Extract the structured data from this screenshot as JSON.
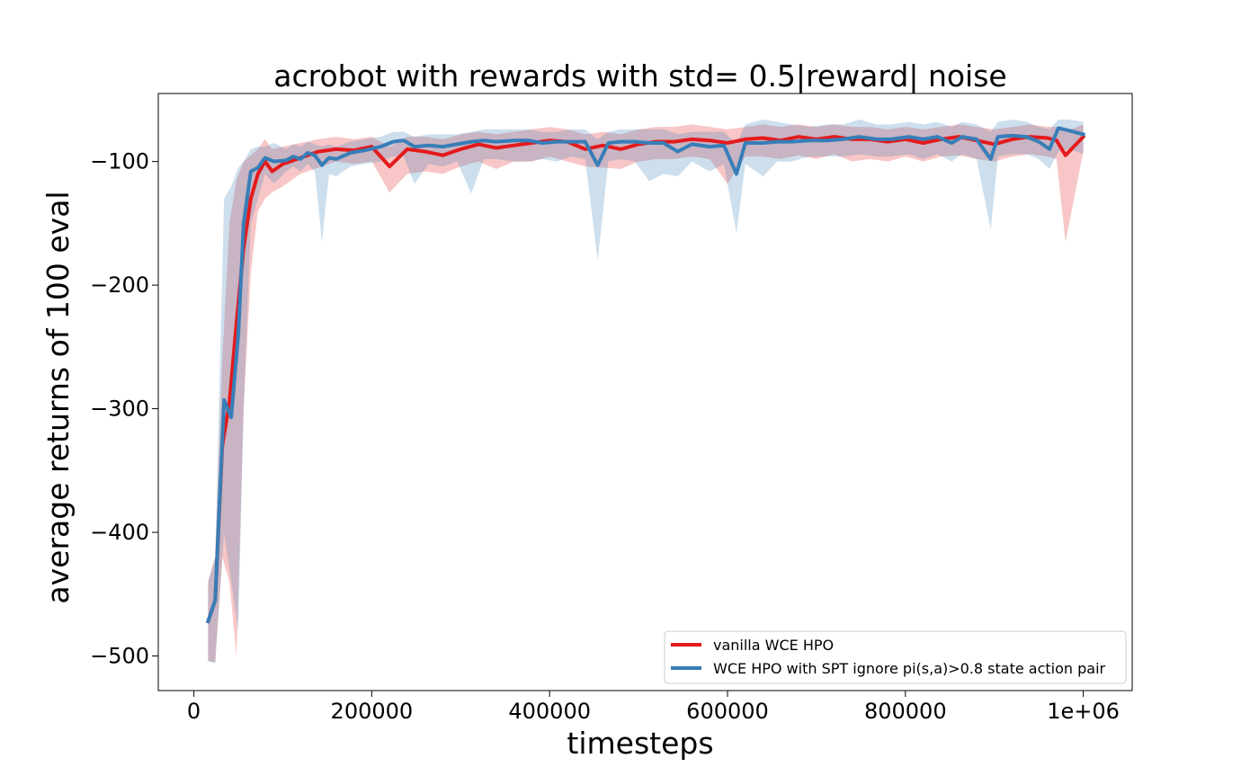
{
  "chart_data": {
    "type": "line",
    "title": "acrobot with rewards with std= 0.5|reward| noise",
    "xlabel": "timesteps",
    "ylabel": "average returns of 100 eval",
    "xlim": [
      -40000,
      1055000
    ],
    "ylim": [
      -528,
      -45
    ],
    "x_ticks": [
      0,
      200000,
      400000,
      600000,
      800000,
      1000000
    ],
    "x_tick_labels": [
      "0",
      "200000",
      "400000",
      "600000",
      "800000",
      "1e+06"
    ],
    "y_ticks": [
      -100,
      -200,
      -300,
      -400,
      -500
    ],
    "y_tick_labels": [
      "−100",
      "−200",
      "−300",
      "−400",
      "−500"
    ],
    "grid": false,
    "legend_position": "lower-right",
    "series": [
      {
        "name": "vanilla WCE HPO",
        "color": "#e41a1c",
        "x": [
          16000,
          24000,
          32000,
          40000,
          48000,
          56000,
          64000,
          72000,
          80000,
          88000,
          100000,
          120000,
          140000,
          160000,
          180000,
          200000,
          220000,
          240000,
          260000,
          280000,
          300000,
          320000,
          340000,
          360000,
          380000,
          400000,
          420000,
          440000,
          460000,
          480000,
          500000,
          520000,
          540000,
          560000,
          580000,
          600000,
          620000,
          640000,
          660000,
          680000,
          700000,
          720000,
          740000,
          760000,
          780000,
          800000,
          820000,
          840000,
          860000,
          880000,
          900000,
          920000,
          940000,
          960000,
          970000,
          980000,
          1000000
        ],
        "y": [
          -472,
          -455,
          -330,
          -295,
          -230,
          -170,
          -130,
          -110,
          -100,
          -108,
          -102,
          -97,
          -92,
          -90,
          -91,
          -88,
          -104,
          -90,
          -92,
          -95,
          -90,
          -86,
          -89,
          -87,
          -85,
          -83,
          -84,
          -90,
          -87,
          -90,
          -86,
          -84,
          -84,
          -82,
          -83,
          -85,
          -82,
          -81,
          -83,
          -80,
          -82,
          -80,
          -82,
          -82,
          -84,
          -82,
          -85,
          -82,
          -80,
          -83,
          -86,
          -82,
          -80,
          -81,
          -83,
          -95,
          -80
        ],
        "lower": [
          -504,
          -505,
          -420,
          -440,
          -500,
          -300,
          -190,
          -140,
          -130,
          -125,
          -120,
          -110,
          -105,
          -100,
          -102,
          -100,
          -125,
          -110,
          -108,
          -110,
          -104,
          -100,
          -106,
          -100,
          -100,
          -96,
          -100,
          -104,
          -105,
          -106,
          -100,
          -98,
          -98,
          -96,
          -98,
          -118,
          -96,
          -96,
          -98,
          -95,
          -98,
          -94,
          -100,
          -98,
          -100,
          -96,
          -100,
          -96,
          -95,
          -98,
          -100,
          -96,
          -94,
          -96,
          -98,
          -165,
          -92
        ],
        "upper": [
          -440,
          -420,
          -260,
          -150,
          -115,
          -100,
          -95,
          -90,
          -82,
          -90,
          -88,
          -85,
          -82,
          -80,
          -82,
          -80,
          -88,
          -80,
          -80,
          -82,
          -78,
          -76,
          -78,
          -76,
          -74,
          -72,
          -74,
          -78,
          -76,
          -78,
          -74,
          -72,
          -72,
          -70,
          -72,
          -74,
          -72,
          -70,
          -72,
          -70,
          -72,
          -70,
          -72,
          -72,
          -74,
          -72,
          -74,
          -72,
          -70,
          -72,
          -74,
          -72,
          -70,
          -72,
          -72,
          -76,
          -70
        ]
      },
      {
        "name": "WCE HPO with SPT ignore pi(s,a)>0.8 state action pair",
        "color": "#377eb8",
        "x": [
          16000,
          24000,
          34000,
          42000,
          50000,
          56000,
          64000,
          72000,
          80000,
          90000,
          104000,
          112000,
          120000,
          128000,
          136000,
          144000,
          152000,
          160000,
          176000,
          192000,
          210000,
          224000,
          236000,
          248000,
          264000,
          280000,
          296000,
          312000,
          326000,
          340000,
          360000,
          376000,
          392000,
          408000,
          424000,
          440000,
          454000,
          466000,
          480000,
          496000,
          512000,
          528000,
          544000,
          560000,
          580000,
          596000,
          610000,
          620000,
          640000,
          656000,
          672000,
          692000,
          712000,
          730000,
          748000,
          768000,
          784000,
          804000,
          820000,
          836000,
          852000,
          864000,
          880000,
          896000,
          904000,
          920000,
          936000,
          950000,
          962000,
          972000,
          984000,
          1000000
        ],
        "y": [
          -472,
          -455,
          -293,
          -307,
          -240,
          -150,
          -108,
          -105,
          -97,
          -100,
          -99,
          -96,
          -98,
          -93,
          -95,
          -103,
          -97,
          -98,
          -93,
          -91,
          -88,
          -84,
          -83,
          -88,
          -87,
          -88,
          -86,
          -84,
          -83,
          -84,
          -83,
          -83,
          -85,
          -84,
          -84,
          -84,
          -103,
          -85,
          -84,
          -84,
          -85,
          -85,
          -92,
          -86,
          -88,
          -87,
          -110,
          -85,
          -85,
          -84,
          -84,
          -83,
          -83,
          -82,
          -80,
          -82,
          -82,
          -80,
          -82,
          -80,
          -85,
          -80,
          -82,
          -98,
          -80,
          -79,
          -80,
          -84,
          -90,
          -73,
          -75,
          -78
        ],
        "lower": [
          -504,
          -506,
          -400,
          -440,
          -480,
          -300,
          -150,
          -130,
          -110,
          -118,
          -108,
          -104,
          -108,
          -102,
          -108,
          -165,
          -110,
          -112,
          -104,
          -102,
          -100,
          -96,
          -96,
          -118,
          -102,
          -104,
          -100,
          -126,
          -98,
          -98,
          -100,
          -100,
          -98,
          -100,
          -96,
          -98,
          -180,
          -100,
          -98,
          -100,
          -116,
          -110,
          -112,
          -100,
          -108,
          -102,
          -158,
          -102,
          -112,
          -100,
          -100,
          -96,
          -96,
          -96,
          -94,
          -96,
          -96,
          -94,
          -98,
          -94,
          -100,
          -94,
          -98,
          -155,
          -96,
          -94,
          -94,
          -98,
          -106,
          -92,
          -90,
          -94
        ],
        "upper": [
          -440,
          -420,
          -130,
          -120,
          -105,
          -100,
          -90,
          -88,
          -88,
          -85,
          -90,
          -86,
          -88,
          -84,
          -86,
          -88,
          -86,
          -88,
          -84,
          -82,
          -80,
          -76,
          -76,
          -80,
          -78,
          -78,
          -78,
          -76,
          -74,
          -74,
          -74,
          -74,
          -76,
          -76,
          -74,
          -74,
          -82,
          -76,
          -74,
          -74,
          -74,
          -74,
          -78,
          -76,
          -76,
          -76,
          -86,
          -70,
          -66,
          -68,
          -70,
          -72,
          -70,
          -70,
          -66,
          -70,
          -70,
          -68,
          -70,
          -68,
          -72,
          -68,
          -70,
          -76,
          -68,
          -66,
          -68,
          -72,
          -74,
          -66,
          -66,
          -68
        ]
      }
    ]
  }
}
